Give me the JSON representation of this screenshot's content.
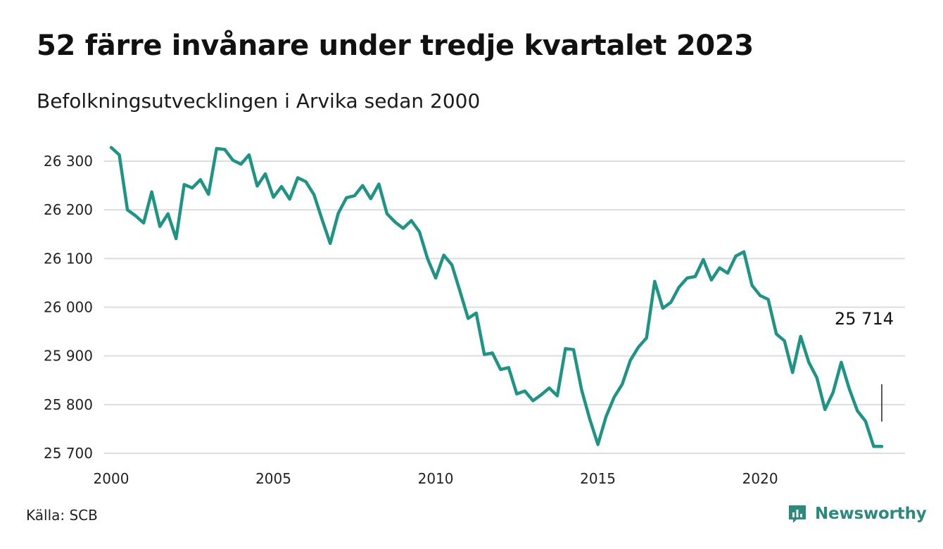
{
  "header": {
    "title": "52 färre invånare under tredje kvartalet 2023",
    "subtitle": "Befolkningsutvecklingen i Arvika sedan 2000"
  },
  "footer": {
    "source": "Källa: SCB",
    "brand": "Newsworthy"
  },
  "colors": {
    "line": "#1e9485",
    "grid": "#dddddd",
    "brand": "#2a8a7d"
  },
  "chart_data": {
    "type": "line",
    "title": "52 färre invånare under tredje kvartalet 2023",
    "subtitle": "Befolkningsutvecklingen i Arvika sedan 2000",
    "xlabel": "",
    "ylabel": "",
    "xlim": [
      2000,
      2024
    ],
    "ylim": [
      25700,
      26320
    ],
    "x_ticks": [
      2000,
      2005,
      2010,
      2015,
      2020
    ],
    "x_tick_labels": [
      "2000",
      "2005",
      "2010",
      "2015",
      "2020"
    ],
    "y_ticks": [
      25700,
      25800,
      25900,
      26000,
      26100,
      26200,
      26300
    ],
    "y_tick_labels": [
      "25 700",
      "25 800",
      "25 900",
      "26 000",
      "26 100",
      "26 200",
      "26 300"
    ],
    "grid": "horizontal",
    "legend": "none",
    "annotation": {
      "label": "25 714",
      "x": 2023.75,
      "y": 25714
    },
    "series": [
      {
        "x": [
          2000.0,
          2000.25,
          2000.5,
          2000.75,
          2001.0,
          2001.25,
          2001.5,
          2001.75,
          2002.0,
          2002.25,
          2002.5,
          2002.75,
          2003.0,
          2003.25,
          2003.5,
          2003.75,
          2004.0,
          2004.25,
          2004.5,
          2004.75,
          2005.0,
          2005.25,
          2005.5,
          2005.75,
          2006.0,
          2006.25,
          2006.5,
          2006.75,
          2007.0,
          2007.25,
          2007.5,
          2007.75,
          2008.0,
          2008.25,
          2008.5,
          2008.75,
          2009.0,
          2009.25,
          2009.5,
          2009.75,
          2010.0,
          2010.25,
          2010.5,
          2010.75,
          2011.0,
          2011.25,
          2011.5,
          2011.75,
          2012.0,
          2012.25,
          2012.5,
          2012.75,
          2013.0,
          2013.25,
          2013.5,
          2013.75,
          2014.0,
          2014.25,
          2014.5,
          2014.75,
          2015.0,
          2015.25,
          2015.5,
          2015.75,
          2016.0,
          2016.25,
          2016.5,
          2016.75,
          2017.0,
          2017.25,
          2017.5,
          2017.75,
          2018.0,
          2018.25,
          2018.5,
          2018.75,
          2019.0,
          2019.25,
          2019.5,
          2019.75,
          2020.0,
          2020.25,
          2020.5,
          2020.75,
          2021.0,
          2021.25,
          2021.5,
          2021.75,
          2022.0,
          2022.25,
          2022.5,
          2022.75,
          2023.0,
          2023.25,
          2023.5,
          2023.75
        ],
        "values": [
          26328,
          26313,
          26200,
          26188,
          26173,
          26237,
          26166,
          26192,
          26141,
          26252,
          26245,
          26262,
          26232,
          26326,
          26324,
          26302,
          26294,
          26313,
          26249,
          26274,
          26226,
          26248,
          26222,
          26266,
          26258,
          26231,
          26180,
          26131,
          26193,
          26225,
          26229,
          26250,
          26223,
          26253,
          26192,
          26175,
          26162,
          26178,
          26155,
          26100,
          26060,
          26107,
          26087,
          26033,
          25977,
          25988,
          25903,
          25906,
          25872,
          25876,
          25822,
          25828,
          25808,
          25820,
          25834,
          25818,
          25915,
          25913,
          25830,
          25770,
          25718,
          25775,
          25815,
          25842,
          25891,
          25918,
          25937,
          26053,
          25998,
          26010,
          26041,
          26060,
          26063,
          26098,
          26056,
          26081,
          26070,
          26105,
          26114,
          26045,
          26024,
          26016,
          25945,
          25931,
          25866,
          25940,
          25887,
          25855,
          25790,
          25825,
          25887,
          25832,
          25787,
          25766,
          25714,
          25714
        ]
      }
    ]
  }
}
